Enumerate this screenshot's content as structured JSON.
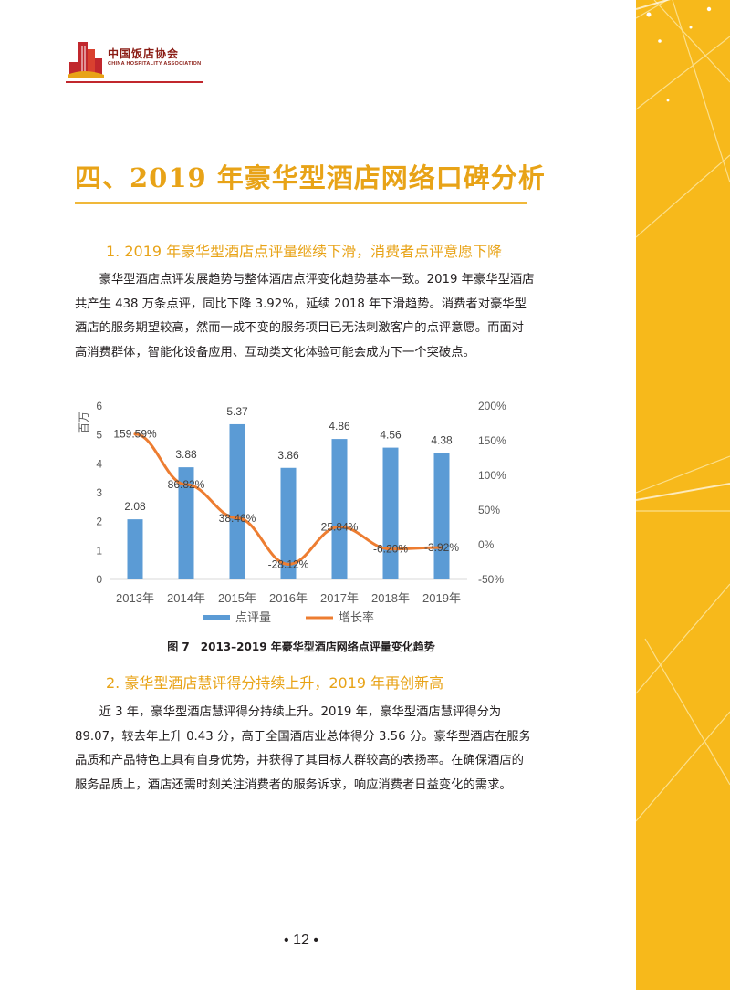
{
  "header": {
    "org_name_cn": "中国饭店协会",
    "org_name_en": "CHINA HOSPITALITY ASSOCIATION"
  },
  "section_title": "四、2019 年豪华型酒店网络口碑分析",
  "subsection1": {
    "title": "1. 2019 年豪华型酒店点评量继续下滑，消费者点评意愿下降",
    "paragraph": "豪华型酒店点评发展趋势与整体酒店点评变化趋势基本一致。2019 年豪华型酒店共产生 438 万条点评，同比下降 3.92%，延续 2018 年下滑趋势。消费者对豪华型酒店的服务期望较高，然而一成不变的服务项目已无法刺激客户的点评意愿。而面对高消费群体，智能化设备应用、互动类文化体验可能会成为下一个突破点。"
  },
  "figure": {
    "caption": "图 7　2013–2019 年豪华型酒店网络点评量变化趋势"
  },
  "chart_data": {
    "type": "bar",
    "categories": [
      "2013年",
      "2014年",
      "2015年",
      "2016年",
      "2017年",
      "2018年",
      "2019年"
    ],
    "series": [
      {
        "name": "点评量",
        "type": "bar",
        "axis": "left",
        "values": [
          2.08,
          3.88,
          5.37,
          3.86,
          4.86,
          4.56,
          4.38
        ],
        "labels": [
          "2.08",
          "3.88",
          "5.37",
          "3.86",
          "4.86",
          "4.56",
          "4.38"
        ],
        "color": "#5b9bd5"
      },
      {
        "name": "增长率",
        "type": "line",
        "axis": "right",
        "values": [
          159.59,
          86.82,
          38.46,
          -28.12,
          25.84,
          -6.2,
          -3.92
        ],
        "labels": [
          "159.59%",
          "86.82%",
          "38.46%",
          "-28.12%",
          "25.84%",
          "-6.20%",
          "-3.92%"
        ],
        "color": "#ed7d31"
      }
    ],
    "ylabel": "百万",
    "ylim": [
      0,
      6
    ],
    "yticks": [
      "0",
      "1",
      "2",
      "3",
      "4",
      "5",
      "6"
    ],
    "y2lim": [
      -50,
      200
    ],
    "y2ticks": [
      "-50%",
      "0%",
      "50%",
      "100%",
      "150%",
      "200%"
    ],
    "legend": "bottom",
    "grid": false
  },
  "subsection2": {
    "title": "2. 豪华型酒店慧评得分持续上升，2019 年再创新高",
    "paragraph": "近 3 年，豪华型酒店慧评得分持续上升。2019 年，豪华型酒店慧评得分为 89.07，较去年上升 0.43 分，高于全国酒店业总体得分 3.56 分。豪华型酒店在服务品质和产品特色上具有自身优势，并获得了其目标人群较高的表扬率。在确保酒店的服务品质上，酒店还需时刻关注消费者的服务诉求，响应消费者日益变化的需求。"
  },
  "page_number": "• 12 •"
}
